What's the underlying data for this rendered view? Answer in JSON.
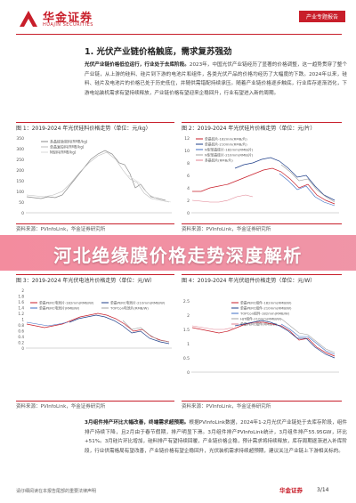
{
  "header": {
    "logo_cn": "华金证券",
    "logo_en": "HUAJIN SECURITIES",
    "tag": "产业专题报告"
  },
  "section": {
    "title": "1. 光伏产业链价格触底，需求复苏强劲"
  },
  "para1": {
    "lead": "光伏产业链价格低位运行，行业处于去库阶段。",
    "body": "2023年，中国光伏产业链经历了显著的价格调整，这一趋势贯穿了整个产业链，从上游的硅料、硅片到下游的电池片和组件，各类光伏产品的价格均经历了大幅度的下跌。2024年以来，硅料、硅片及电池片的价格已处于历史低位，并随供需错配持续承压。随着产业链价格逐步触底，行业库存逐渐消化，下游电站装机需求有望持续释放，产业链价格有望迎来企稳回升，行业有望进入新的周期。"
  },
  "charts": [
    {
      "title": "图 1：2019-2024 年光伏硅料价格走势（单位：元/kg）",
      "source": "资料来源：PVInfoLink，华金证券研究所",
      "legend": [
        "多晶硅致密料(RMB/kg)",
        "单晶复投料(RMB/kg)",
        "N型料(RMB/kg)"
      ],
      "colors": [
        "#8a8a8a",
        "#bdbdbd",
        "#d8d8d8"
      ],
      "yticks": [
        "350",
        "300",
        "250",
        "200",
        "150",
        "100",
        "50",
        "0"
      ]
    },
    {
      "title": "图 2：2019-2024 年光伏硅片价格走势（单位：元/片）",
      "source": "资料来源：PVInfoLink，华金证券研究所",
      "legend": [
        "单晶硅片-182mm(RMB/片)",
        "单晶硅片-210mm(RMB/片)",
        "N型单晶硅片-182mm(RMB/片)",
        "N型单晶硅片-210mm(RMB/片)",
        "多晶硅片(RMB/片)"
      ],
      "colors": [
        "#c81e2a",
        "#1f3f8a",
        "#3c6cc4",
        "#a0a0a0",
        "#e08090"
      ],
      "yticks": [
        "12",
        "10",
        "8",
        "6",
        "4",
        "2",
        "0"
      ]
    },
    {
      "title": "图 3：2019-2024 年光伏电池片价格走势（单位：元/W）",
      "source": "资料来源：PVInfoLink，华金证券研究所",
      "legend": [
        "单晶PERC电池片-182mm(RMB/W)",
        "单晶PERC电池片-210mm(RMB/W)",
        "单晶PERC电池片(RMB/W)",
        "TOPCon电池片(RMB/W)"
      ],
      "colors": [
        "#c81e2a",
        "#1f3f8a",
        "#3c6cc4",
        "#a0a0a0"
      ],
      "yticks": [
        "2",
        "1.8",
        "1.6",
        "1.4",
        "1.2",
        "1",
        "0.8",
        "0.6",
        "0.4",
        "0.2",
        "0"
      ]
    },
    {
      "title": "图 4：2019-2024 年光伏组件价格走势（单位：元/W）",
      "source": "资料来源：PVInfoLink，华金证券研究所",
      "legend": [
        "单晶PERC组件-182mm(RMB/W)",
        "单晶PERC组件-210mm(RMB/W)",
        "TOPCon组件-182mm(RMB/W)",
        "HJT组件-210mm(RMB/W)",
        "单晶PERC组件(RMB/W)"
      ],
      "colors": [
        "#c81e2a",
        "#1f3f8a",
        "#3c6cc4",
        "#a0a0a0",
        "#e08090"
      ],
      "yticks": [
        "2.5",
        "2",
        "1.5",
        "1",
        "0.5",
        "0"
      ]
    }
  ],
  "banner": {
    "text": "河北绝缘膜价格走势深度解析"
  },
  "para2": {
    "lead": "3月组件排产环比大幅改善，终端需求超预期。",
    "body": "根据PVInfoLink数据，2024年1-2月光伏产业链处于去库存阶段，组件排产持续下降，且2月由于春节假期，排产明显下滑。3月组件排产PVInfoLink统计，3月组件排产55.95GW，环比+51%。3月硅片环比增加，硅料排产有望持续回暖，产业链价格企稳，预计需求将持续释放，库存周期逐渐进入补库阶段，行业供需格局有望改善，产业链价格有望企稳回升，光伏装机需求持续超预期，建议关注产业链上下游相关标的。"
  },
  "footer": {
    "left": "请仔细阅读在本报告尾部的重要法律声明",
    "logo": "华金证券",
    "page": "3/14"
  }
}
